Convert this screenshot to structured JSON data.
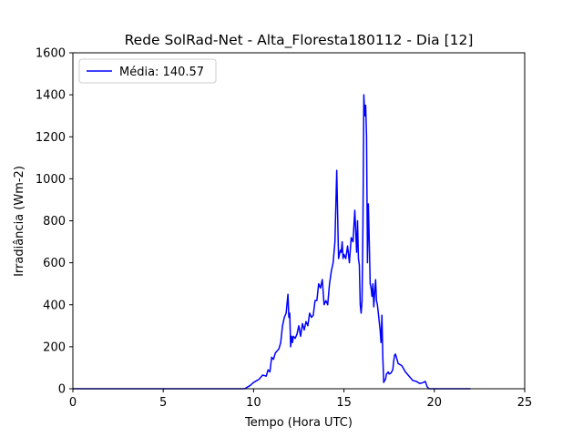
{
  "chart_data": {
    "type": "line",
    "title": "Rede SolRad-Net - Alta_Floresta180112 - Dia [12]",
    "xlabel": "Tempo (Hora UTC)",
    "ylabel": "Irradiância (Wm-2)",
    "xlim": [
      0,
      25
    ],
    "ylim": [
      0,
      1600
    ],
    "xticks": [
      0,
      5,
      10,
      15,
      20,
      25
    ],
    "yticks": [
      0,
      200,
      400,
      600,
      800,
      1000,
      1200,
      1400,
      1600
    ],
    "grid": false,
    "legend_position": "top-left",
    "series": [
      {
        "name": "Média: 140.57",
        "color": "#0000ff",
        "x": [
          0,
          9.5,
          9.8,
          10.0,
          10.3,
          10.5,
          10.7,
          10.8,
          10.9,
          11.0,
          11.1,
          11.2,
          11.3,
          11.4,
          11.5,
          11.6,
          11.7,
          11.8,
          11.9,
          11.95,
          12.0,
          12.05,
          12.1,
          12.15,
          12.2,
          12.3,
          12.4,
          12.5,
          12.6,
          12.7,
          12.8,
          12.9,
          13.0,
          13.1,
          13.2,
          13.3,
          13.4,
          13.5,
          13.6,
          13.7,
          13.8,
          13.9,
          14.0,
          14.1,
          14.2,
          14.3,
          14.4,
          14.5,
          14.6,
          14.7,
          14.8,
          14.85,
          14.9,
          14.95,
          15.0,
          15.1,
          15.2,
          15.3,
          15.4,
          15.5,
          15.6,
          15.7,
          15.75,
          15.8,
          15.85,
          15.9,
          15.95,
          16.0,
          16.05,
          16.1,
          16.15,
          16.2,
          16.25,
          16.3,
          16.35,
          16.4,
          16.45,
          16.5,
          16.55,
          16.6,
          16.65,
          16.7,
          16.75,
          16.8,
          16.85,
          16.9,
          16.95,
          17.0,
          17.05,
          17.1,
          17.15,
          17.2,
          17.25,
          17.3,
          17.35,
          17.4,
          17.45,
          17.5,
          17.6,
          17.7,
          17.75,
          17.8,
          17.85,
          17.9,
          18.0,
          18.2,
          18.4,
          18.6,
          18.8,
          19.0,
          19.2,
          19.4,
          19.5,
          19.6,
          19.7,
          19.8,
          20.0,
          20.2,
          20.4,
          20.6,
          20.8,
          21.0,
          21.2,
          21.4,
          21.6,
          21.8,
          21.9,
          22.0
        ],
        "y": [
          0,
          0,
          15,
          30,
          45,
          65,
          60,
          90,
          80,
          150,
          140,
          170,
          180,
          190,
          220,
          300,
          340,
          360,
          450,
          340,
          360,
          200,
          250,
          220,
          250,
          240,
          260,
          300,
          250,
          310,
          280,
          320,
          300,
          360,
          340,
          350,
          420,
          420,
          500,
          480,
          520,
          400,
          420,
          400,
          500,
          560,
          600,
          700,
          1040,
          620,
          660,
          650,
          700,
          620,
          640,
          620,
          680,
          600,
          720,
          700,
          850,
          650,
          800,
          620,
          590,
          400,
          360,
          420,
          780,
          1400,
          1300,
          1350,
          1200,
          600,
          880,
          700,
          500,
          480,
          440,
          500,
          390,
          460,
          520,
          420,
          400,
          360,
          320,
          280,
          220,
          350,
          150,
          30,
          40,
          45,
          70,
          75,
          80,
          70,
          75,
          90,
          130,
          160,
          165,
          150,
          120,
          110,
          80,
          60,
          40,
          35,
          25,
          30,
          35,
          10,
          0,
          0,
          0,
          0,
          0,
          0,
          0,
          0,
          0,
          0,
          0,
          0,
          0,
          0
        ]
      }
    ]
  }
}
